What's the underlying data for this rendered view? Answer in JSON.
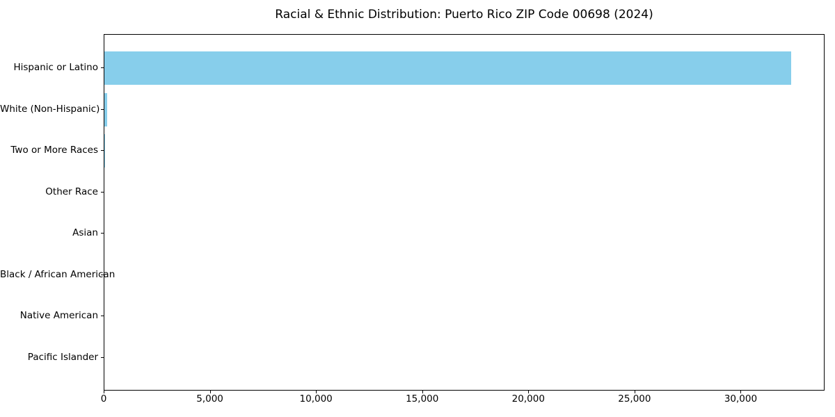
{
  "chart_data": {
    "type": "bar",
    "orientation": "horizontal",
    "title": "Racial & Ethnic Distribution: Puerto Rico ZIP Code 00698 (2024)",
    "categories": [
      "Hispanic or Latino",
      "White (Non-Hispanic)",
      "Two or More Races",
      "Other Race",
      "Asian",
      "Black / African American",
      "Native American",
      "Pacific Islander"
    ],
    "values": [
      32330,
      130,
      30,
      0,
      0,
      0,
      0,
      0
    ],
    "xlabel": "",
    "ylabel": "",
    "xlim": [
      0,
      33950
    ],
    "x_ticks": [
      {
        "value": 0,
        "label": "0"
      },
      {
        "value": 5000,
        "label": "5,000"
      },
      {
        "value": 10000,
        "label": "10,000"
      },
      {
        "value": 15000,
        "label": "15,000"
      },
      {
        "value": 20000,
        "label": "20,000"
      },
      {
        "value": 25000,
        "label": "25,000"
      },
      {
        "value": 30000,
        "label": "30,000"
      }
    ],
    "bar_color": "#87ceeb",
    "frame_color": "#000000",
    "grid": false,
    "legend": false
  }
}
